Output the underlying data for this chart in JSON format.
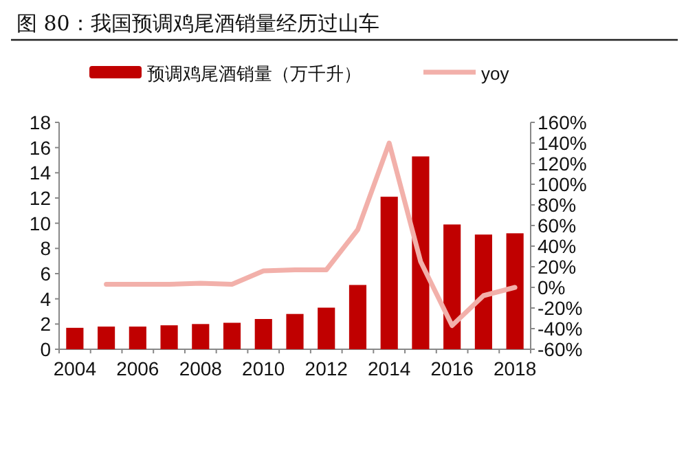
{
  "chart_data": {
    "type": "bar",
    "title": "图 80：我国预调鸡尾酒销量经历过山车",
    "categories": [
      "2004",
      null,
      "2006",
      null,
      "2008",
      null,
      "2010",
      null,
      "2012",
      null,
      "2014",
      null,
      "2016",
      null,
      "2018"
    ],
    "series": [
      {
        "name": "预调鸡尾酒销量（万千升）",
        "color": "#c00000",
        "values": [
          1.7,
          1.8,
          1.8,
          1.9,
          2.0,
          2.1,
          2.4,
          2.8,
          3.3,
          5.1,
          12.1,
          15.3,
          9.9,
          9.1,
          9.2
        ]
      },
      {
        "name": "yoy",
        "type": "line",
        "axis": "y2",
        "color": "#f2b0aa",
        "values": [
          null,
          3,
          3,
          3,
          4,
          3,
          16,
          17,
          17,
          56,
          140,
          25,
          -37,
          -8,
          0
        ]
      }
    ],
    "ylim": [
      0,
      18
    ],
    "yticks": [
      0,
      2,
      4,
      6,
      8,
      10,
      12,
      14,
      16,
      18
    ],
    "y2lim": [
      -60,
      160
    ],
    "y2ticks": [
      {
        "value": -60,
        "label": "-60%"
      },
      {
        "value": -40,
        "label": "-40%"
      },
      {
        "value": -20,
        "label": "-20%"
      },
      {
        "value": 0,
        "label": "0%"
      },
      {
        "value": 20,
        "label": "20%"
      },
      {
        "value": 40,
        "label": "40%"
      },
      {
        "value": 60,
        "label": "60%"
      },
      {
        "value": 80,
        "label": "80%"
      },
      {
        "value": 100,
        "label": "100%"
      },
      {
        "value": 120,
        "label": "120%"
      },
      {
        "value": 140,
        "label": "140%"
      },
      {
        "value": 160,
        "label": "160%"
      }
    ],
    "legend": "top",
    "grid": false
  }
}
